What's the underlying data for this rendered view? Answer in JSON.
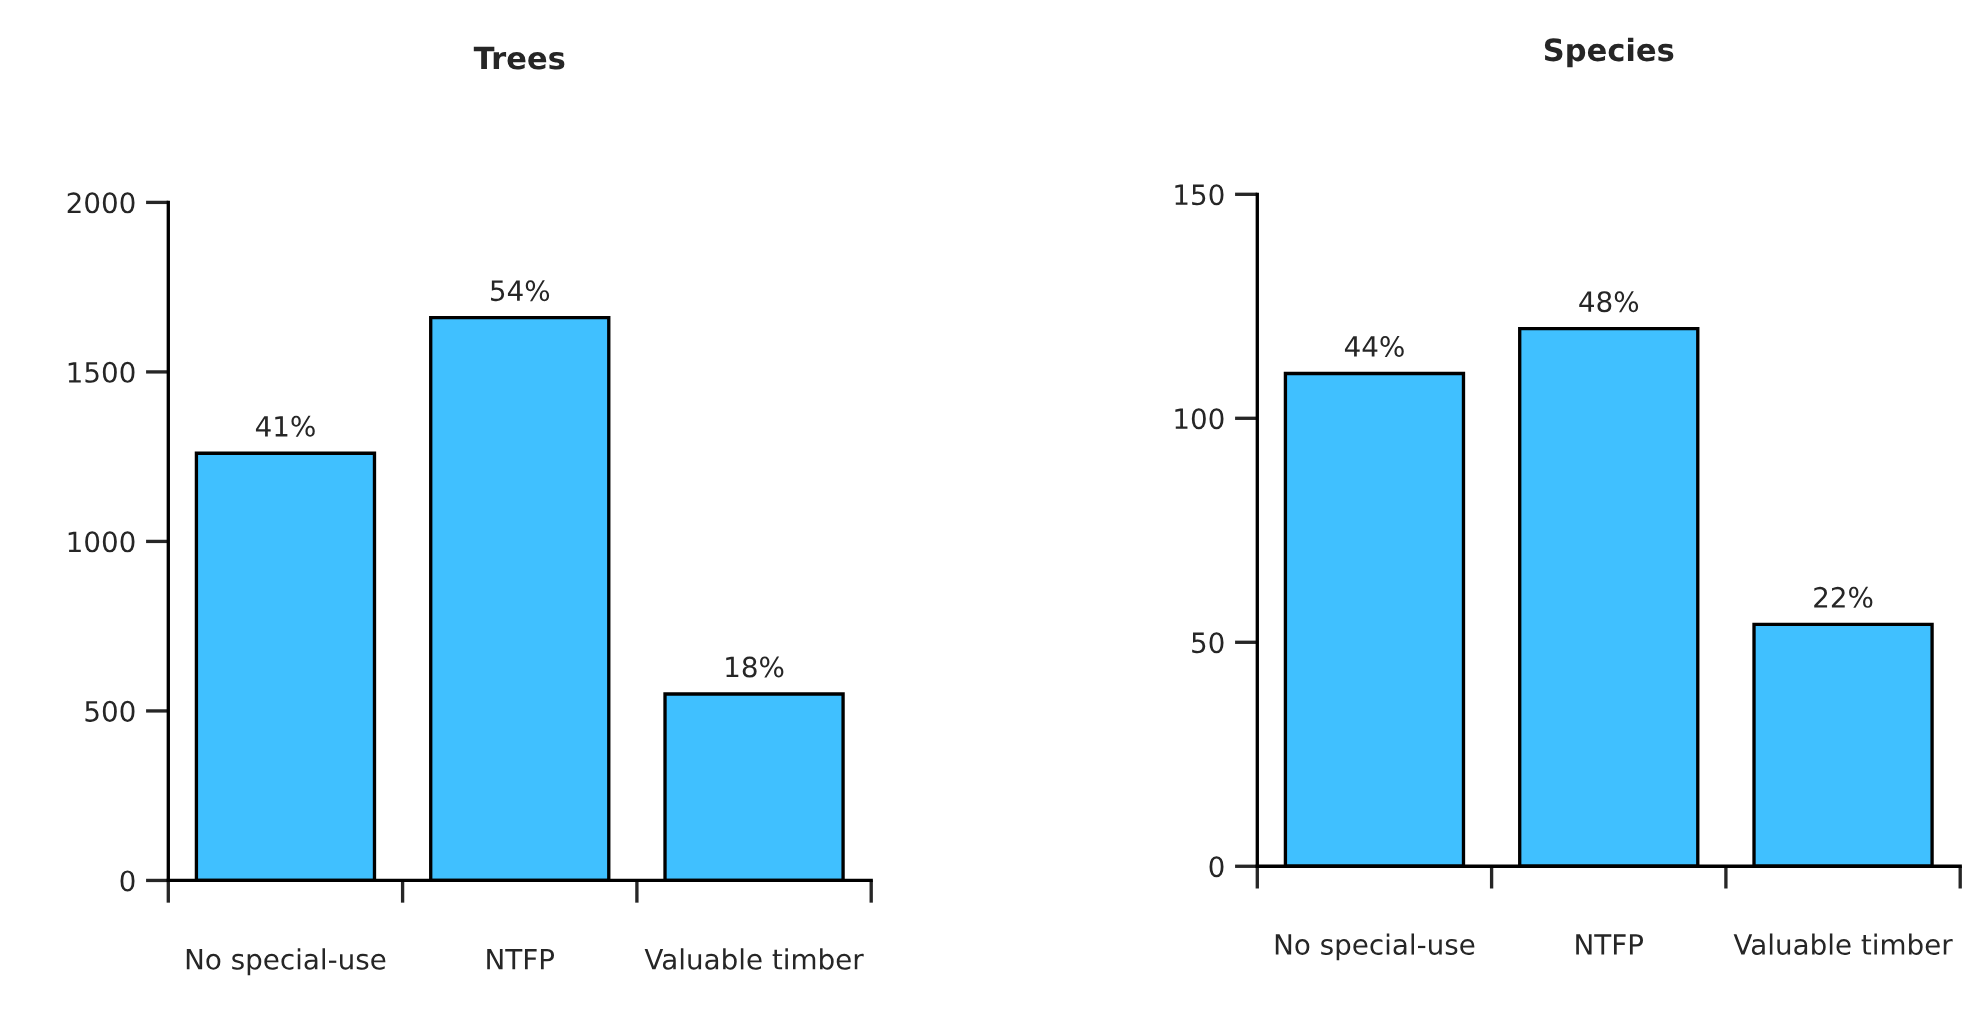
{
  "chart_data": [
    {
      "type": "bar",
      "title": "Trees",
      "categories": [
        "No special-use",
        "NTFP",
        "Valuable timber"
      ],
      "values": [
        1260,
        1660,
        550
      ],
      "color": "#40c0ff",
      "ylim": [
        0,
        2000
      ],
      "yticks": [
        0,
        500,
        1000,
        1500,
        2000
      ],
      "grid": false,
      "legend": false,
      "annotations": [
        {
          "text": "41%",
          "x": "No special-use",
          "y": 1260
        },
        {
          "text": "54%",
          "x": "NTFP",
          "y": 1660
        },
        {
          "text": "18%",
          "x": "Valuable timber",
          "y": 550
        }
      ]
    },
    {
      "type": "bar",
      "title": "Species",
      "categories": [
        "No special-use",
        "NTFP",
        "Valuable timber"
      ],
      "values": [
        110,
        120,
        54
      ],
      "color": "#40c0ff",
      "ylim": [
        0,
        150
      ],
      "yticks": [
        0,
        50,
        100,
        150
      ],
      "grid": false,
      "legend": false,
      "annotations": [
        {
          "text": "44%",
          "x": "No special-use",
          "y": 110
        },
        {
          "text": "48%",
          "x": "NTFP",
          "y": 120
        },
        {
          "text": "22%",
          "x": "Valuable timber",
          "y": 54
        }
      ]
    }
  ]
}
